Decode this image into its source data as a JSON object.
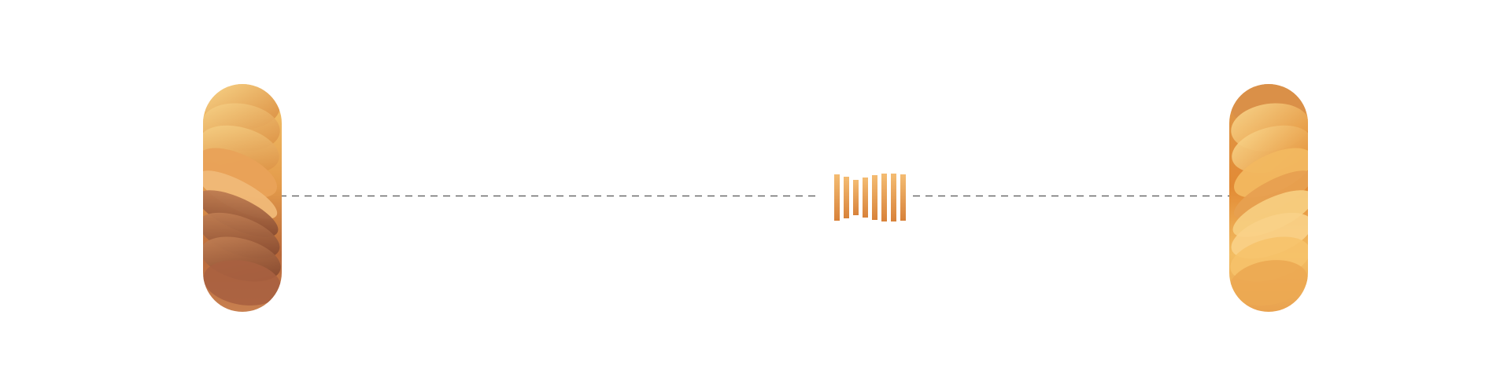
{
  "scene": {
    "objects": [
      {
        "name": "left-twisted-coin-stack",
        "palette": [
          "#f4c56a",
          "#e8a24a",
          "#d9893a",
          "#b8683a",
          "#8a4a30"
        ]
      },
      {
        "name": "center-coin-slices",
        "palette": [
          "#f2b46a",
          "#e69a4e",
          "#d8823a"
        ]
      },
      {
        "name": "right-twisted-coin-stack",
        "palette": [
          "#f7cf78",
          "#efb35a",
          "#e4963c",
          "#d07d38"
        ]
      }
    ],
    "connector": {
      "style": "dashed",
      "color": "#555555"
    }
  }
}
